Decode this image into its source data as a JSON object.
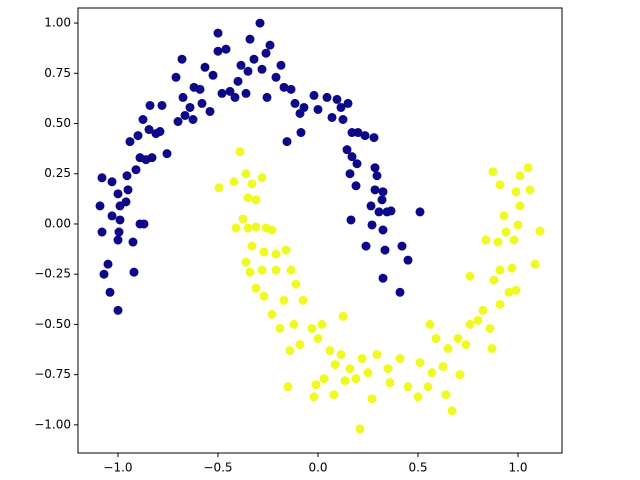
{
  "chart_data": {
    "type": "scatter",
    "xlim": [
      -1.2,
      1.22
    ],
    "ylim": [
      -1.14,
      1.075
    ],
    "xticks": [
      {
        "value": -1.0,
        "label": "−1.0"
      },
      {
        "value": -0.5,
        "label": "−0.5"
      },
      {
        "value": 0,
        "label": "0.0"
      },
      {
        "value": 0.5,
        "label": "0.5"
      },
      {
        "value": 1.0,
        "label": "1.0"
      }
    ],
    "yticks": [
      {
        "value": -1.0,
        "label": "−1.00"
      },
      {
        "value": -0.75,
        "label": "−0.75"
      },
      {
        "value": -0.5,
        "label": "−0.50"
      },
      {
        "value": -0.25,
        "label": "−0.25"
      },
      {
        "value": 0,
        "label": "0.00"
      },
      {
        "value": 0.25,
        "label": "0.25"
      },
      {
        "value": 0.5,
        "label": "0.50"
      },
      {
        "value": 0.75,
        "label": "0.75"
      },
      {
        "value": 1.0,
        "label": "1.00"
      }
    ],
    "grid": false,
    "series": [
      {
        "color": "#0d0887",
        "x": [
          -1.09,
          -1.08,
          -1.08,
          -1.07,
          -1.04,
          -1.0,
          -1.03,
          -1.0,
          -0.99,
          -1.03,
          -0.99,
          -1.05,
          -1.0,
          -0.995,
          -0.955,
          -0.95,
          -0.96,
          -0.92,
          -0.925,
          -0.89,
          -0.87,
          -0.91,
          -0.94,
          -0.9,
          -0.89,
          -0.86,
          -0.83,
          -0.875,
          -0.84,
          -0.845,
          -0.81,
          -0.79,
          -0.78,
          -0.755,
          -0.71,
          -0.7,
          -0.675,
          -0.68,
          -0.665,
          -0.64,
          -0.625,
          -0.62,
          -0.59,
          -0.58,
          -0.565,
          -0.54,
          -0.525,
          -0.5,
          -0.46,
          -0.48,
          -0.44,
          -0.4,
          -0.385,
          -0.415,
          -0.36,
          -0.35,
          -0.5,
          -0.34,
          -0.29,
          -0.32,
          -0.28,
          -0.26,
          -0.24,
          -0.255,
          -0.21,
          -0.185,
          -0.17,
          -0.135,
          -0.115,
          -0.155,
          -0.085,
          -0.09,
          -0.07,
          -0.02,
          0.0,
          0.045,
          0.07,
          0.095,
          0.115,
          0.15,
          0.125,
          0.17,
          0.2,
          0.235,
          0.28,
          0.145,
          0.17,
          0.195,
          0.16,
          0.19,
          0.285,
          0.295,
          0.285,
          0.325,
          0.265,
          0.305,
          0.345,
          0.365,
          0.165,
          0.27,
          0.325,
          0.42,
          0.45,
          0.335,
          0.325,
          0.41,
          0.51,
          0.32,
          0.24
        ],
        "y": [
          0.09,
          0.23,
          -0.04,
          -0.25,
          -0.34,
          -0.43,
          0.21,
          0.15,
          0.09,
          0.04,
          0.02,
          -0.2,
          -0.08,
          -0.04,
          0.24,
          0.17,
          0.11,
          -0.24,
          -0.09,
          0.0,
          0.0,
          0.27,
          0.41,
          0.44,
          0.33,
          0.32,
          0.33,
          0.52,
          0.59,
          0.47,
          0.45,
          0.46,
          0.59,
          0.35,
          0.73,
          0.51,
          0.63,
          0.82,
          0.54,
          0.58,
          0.52,
          0.68,
          0.67,
          0.6,
          0.78,
          0.56,
          0.74,
          0.86,
          0.87,
          0.65,
          0.66,
          0.71,
          0.79,
          0.63,
          0.65,
          0.76,
          0.95,
          0.92,
          1.0,
          0.82,
          0.77,
          0.85,
          0.89,
          0.63,
          0.73,
          0.79,
          0.68,
          0.67,
          0.6,
          0.41,
          0.455,
          0.55,
          0.58,
          0.64,
          0.57,
          0.63,
          0.53,
          0.62,
          0.58,
          0.6,
          0.52,
          0.455,
          0.455,
          0.44,
          0.43,
          0.37,
          0.335,
          0.3,
          0.25,
          0.19,
          0.28,
          0.24,
          0.17,
          0.16,
          0.09,
          0.06,
          0.06,
          0.065,
          0.02,
          -0.005,
          -0.03,
          -0.11,
          -0.18,
          -0.13,
          -0.27,
          -0.34,
          0.06,
          0.12,
          -0.11
        ]
      },
      {
        "color": "#f0f921",
        "x": [
          -0.39,
          -0.495,
          -0.42,
          -0.36,
          -0.33,
          -0.28,
          -0.31,
          -0.35,
          -0.375,
          -0.41,
          -0.35,
          -0.31,
          -0.26,
          -0.23,
          -0.33,
          -0.36,
          -0.27,
          -0.21,
          -0.16,
          -0.34,
          -0.28,
          -0.21,
          -0.135,
          -0.31,
          -0.27,
          -0.23,
          -0.17,
          -0.11,
          -0.075,
          -0.19,
          -0.12,
          -0.14,
          -0.09,
          -0.15,
          -0.03,
          0.0,
          0.02,
          0.06,
          0.125,
          -0.02,
          0.03,
          0.085,
          0.115,
          0.16,
          0.19,
          0.22,
          0.135,
          0.21,
          0.25,
          0.27,
          0.295,
          0.35,
          0.36,
          0.41,
          0.45,
          0.5,
          0.55,
          0.57,
          0.56,
          0.59,
          0.625,
          0.65,
          0.67,
          0.64,
          0.7,
          0.74,
          0.76,
          0.8,
          0.825,
          0.86,
          0.87,
          0.91,
          0.88,
          0.76,
          0.91,
          0.955,
          0.97,
          0.99,
          0.9,
          0.84,
          0.94,
          0.98,
          1.0,
          0.93,
          1.01,
          1.06,
          0.99,
          1.05,
          1.01,
          0.875,
          0.91,
          1.11,
          1.085,
          -0.01,
          0.08,
          0.51,
          0.71
        ],
        "y": [
          0.36,
          0.18,
          0.21,
          0.25,
          0.2,
          0.23,
          0.12,
          0.13,
          0.025,
          -0.02,
          -0.02,
          -0.015,
          -0.02,
          -0.03,
          -0.11,
          -0.19,
          -0.14,
          -0.15,
          -0.13,
          -0.24,
          -0.23,
          -0.23,
          -0.23,
          -0.32,
          -0.36,
          -0.45,
          -0.38,
          -0.3,
          -0.38,
          -0.52,
          -0.5,
          -0.63,
          -0.6,
          -0.81,
          -0.52,
          -0.57,
          -0.5,
          -0.63,
          -0.46,
          -0.86,
          -0.77,
          -0.7,
          -0.65,
          -0.72,
          -0.77,
          -0.67,
          -0.78,
          -1.02,
          -0.74,
          -0.87,
          -0.65,
          -0.72,
          -0.79,
          -0.67,
          -0.81,
          -0.86,
          -0.81,
          -0.74,
          -0.5,
          -0.57,
          -0.71,
          -0.62,
          -0.93,
          -0.85,
          -0.57,
          -0.6,
          -0.5,
          -0.48,
          -0.43,
          -0.52,
          -0.62,
          -0.4,
          -0.28,
          -0.26,
          -0.23,
          -0.34,
          -0.22,
          -0.33,
          -0.09,
          -0.08,
          -0.04,
          -0.08,
          -0.005,
          0.04,
          0.09,
          0.17,
          0.16,
          0.28,
          0.24,
          0.26,
          0.195,
          -0.035,
          -0.2,
          -0.8,
          -0.85,
          -0.69,
          -0.75
        ]
      }
    ]
  }
}
